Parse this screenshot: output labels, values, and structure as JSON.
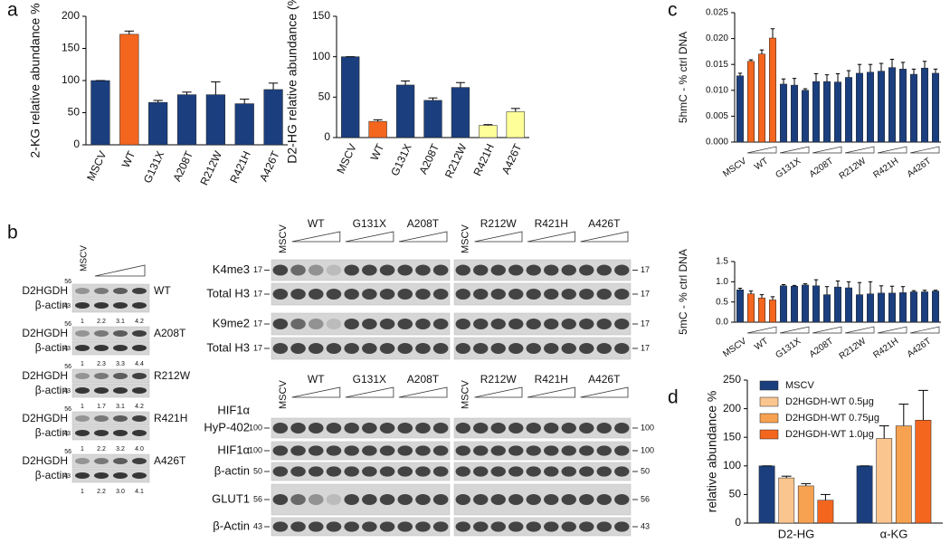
{
  "panel_labels": [
    "a",
    "b",
    "c",
    "d"
  ],
  "chart_data": [
    {
      "type": "bar",
      "ylabel": "2-KG relative abundance %",
      "categories": [
        "MSCV",
        "WT",
        "G131X",
        "A208T",
        "R212W",
        "R421H",
        "A426T"
      ],
      "values": [
        100,
        172,
        66,
        78,
        78,
        64,
        86
      ],
      "errors": [
        0,
        5,
        3,
        4,
        20,
        7,
        10
      ],
      "colors": [
        "#1b3f7e",
        "#f4661e",
        "#1b3f7e",
        "#1b3f7e",
        "#1b3f7e",
        "#1b3f7e",
        "#1b3f7e"
      ],
      "ylim": [
        0,
        200
      ],
      "yticks": [
        0,
        50,
        100,
        150,
        200
      ]
    },
    {
      "type": "bar",
      "ylabel": "D2-HG relative abundance (%)",
      "categories": [
        "MSCV",
        "WT",
        "G131X",
        "A208T",
        "R212W",
        "R421H",
        "A426T"
      ],
      "values": [
        100,
        20,
        65,
        46,
        62,
        15,
        32
      ],
      "errors": [
        0,
        2,
        5,
        3,
        6,
        1,
        4
      ],
      "colors": [
        "#1b3f7e",
        "#f4661e",
        "#1b3f7e",
        "#1b3f7e",
        "#1b3f7e",
        "#ffff99",
        "#ffff99"
      ],
      "ylim": [
        0,
        150
      ],
      "yticks": [
        0,
        50,
        100,
        150
      ]
    },
    {
      "type": "dose_bar",
      "ylabel": "5hmC - % ctrl DNA",
      "groups": [
        {
          "name": "MSCV",
          "color": "#1b3f7e",
          "values": [
            0.0128
          ],
          "errors": [
            0.0005
          ]
        },
        {
          "name": "WT",
          "color": "#f4661e",
          "values": [
            0.0156,
            0.017,
            0.0201
          ],
          "errors": [
            0.0003,
            0.0008,
            0.0018
          ]
        },
        {
          "name": "G131X",
          "color": "#1b3f7e",
          "values": [
            0.0112,
            0.011,
            0.01
          ],
          "errors": [
            0.001,
            0.0013,
            0.0003
          ]
        },
        {
          "name": "A208T",
          "color": "#1b3f7e",
          "values": [
            0.0117,
            0.0117,
            0.0116
          ],
          "errors": [
            0.0015,
            0.0013,
            0.0016
          ]
        },
        {
          "name": "R212W",
          "color": "#1b3f7e",
          "values": [
            0.0125,
            0.0133,
            0.0135
          ],
          "errors": [
            0.0013,
            0.0017,
            0.0015
          ]
        },
        {
          "name": "R421H",
          "color": "#1b3f7e",
          "values": [
            0.0137,
            0.0144,
            0.0141
          ],
          "errors": [
            0.0015,
            0.0016,
            0.0013
          ]
        },
        {
          "name": "A426T",
          "color": "#1b3f7e",
          "values": [
            0.0131,
            0.0143,
            0.0133
          ],
          "errors": [
            0.001,
            0.0013,
            0.0008
          ]
        }
      ],
      "ylim": [
        0,
        0.025
      ],
      "yticks": [
        {
          "value": 0,
          "label": "0.000"
        },
        0.005,
        {
          "value": 0.01,
          "label": "0.010"
        },
        0.015,
        {
          "value": 0.02,
          "label": "0.020"
        },
        0.025
      ]
    },
    {
      "type": "dose_bar",
      "ylabel": "5mC - % ctrl DNA",
      "groups": [
        {
          "name": "MSCV",
          "color": "#1b3f7e",
          "values": [
            0.8
          ],
          "errors": [
            0.04
          ]
        },
        {
          "name": "WT",
          "color": "#f4661e",
          "values": [
            0.7,
            0.6,
            0.55
          ],
          "errors": [
            0.07,
            0.08,
            0.08
          ]
        },
        {
          "name": "G131X",
          "color": "#1b3f7e",
          "values": [
            0.9,
            0.89,
            0.92
          ],
          "errors": [
            0.03,
            0.02,
            0.03
          ]
        },
        {
          "name": "A208T",
          "color": "#1b3f7e",
          "values": [
            0.9,
            0.68,
            0.87
          ],
          "errors": [
            0.15,
            0.2,
            0.15
          ]
        },
        {
          "name": "R212W",
          "color": "#1b3f7e",
          "values": [
            0.85,
            0.68,
            0.7
          ],
          "errors": [
            0.15,
            0.3,
            0.3
          ]
        },
        {
          "name": "R421H",
          "color": "#1b3f7e",
          "values": [
            0.72,
            0.72,
            0.73
          ],
          "errors": [
            0.18,
            0.17,
            0.15
          ]
        },
        {
          "name": "A426T",
          "color": "#1b3f7e",
          "values": [
            0.75,
            0.75,
            0.77
          ],
          "errors": [
            0.03,
            0.04,
            0.02
          ]
        }
      ],
      "ylim": [
        0,
        1.5
      ],
      "yticks": [
        {
          "value": 0,
          "label": "0.0"
        },
        0.5,
        {
          "value": 1,
          "label": "1.0"
        },
        1.5
      ]
    },
    {
      "type": "grouped_bar",
      "ylabel": "relative abundance %",
      "categories": [
        "D2-HG",
        "α-KG"
      ],
      "series": [
        {
          "name": "MSCV",
          "color": "#1b3f7e",
          "values": [
            100,
            100
          ],
          "errors": [
            0,
            0
          ]
        },
        {
          "name": "D2HGDH-WT 0.5μg",
          "color": "#fbc58f",
          "values": [
            79,
            148
          ],
          "errors": [
            3,
            22
          ]
        },
        {
          "name": "D2HGDH-WT 0.75μg",
          "color": "#f7a250",
          "values": [
            65,
            170
          ],
          "errors": [
            4,
            38
          ]
        },
        {
          "name": "D2HGDH-WT 1.0μg",
          "color": "#f4661e",
          "values": [
            40,
            180
          ],
          "errors": [
            10,
            52
          ]
        }
      ],
      "ylim": [
        0,
        250
      ],
      "yticks": [
        0,
        50,
        100,
        150,
        200,
        250
      ],
      "legend": "upper-left"
    }
  ],
  "blots": {
    "left": {
      "header": "MSCV",
      "blocks": [
        {
          "name": "WT",
          "rows": [
            "D2HGDH",
            "β-actin"
          ],
          "markers": [
            "56",
            "43"
          ],
          "quant": [
            "1",
            "2.2",
            "3.1",
            "4.2"
          ]
        },
        {
          "name": "A208T",
          "rows": [
            "D2HGDH",
            "β-actin"
          ],
          "markers": [
            "56",
            "43"
          ],
          "quant": [
            "1",
            "2.3",
            "3.3",
            "4.4"
          ]
        },
        {
          "name": "R212W",
          "rows": [
            "D2HGDH",
            "β-actin"
          ],
          "markers": [
            "56",
            "43"
          ],
          "quant": [
            "1",
            "1.7",
            "3.1",
            "4.2"
          ]
        },
        {
          "name": "R421H",
          "rows": [
            "D2HGDH",
            "β-actin"
          ],
          "markers": [
            "56",
            "43"
          ],
          "quant": [
            "1",
            "2.2",
            "3.2",
            "4.0"
          ]
        },
        {
          "name": "A426T",
          "rows": [
            "D2HGDH",
            "β-actin"
          ],
          "markers": [
            "56",
            "43"
          ],
          "quant": [
            "1",
            "2.2",
            "3.0",
            "4.1"
          ]
        }
      ]
    },
    "top": {
      "panels": [
        [
          "MSCV",
          "WT",
          "G131X",
          "A208T"
        ],
        [
          "MSCV",
          "R212W",
          "R421H",
          "A426T"
        ]
      ],
      "rows": [
        {
          "label": [
            "K4me3"
          ],
          "marker": "17"
        },
        {
          "label": [
            "Total H3"
          ],
          "marker": "17"
        },
        {
          "label": [
            "K9me2"
          ],
          "marker": "17"
        },
        {
          "label": [
            "Total H3"
          ],
          "marker": "17"
        }
      ]
    },
    "bottom": {
      "panels": [
        [
          "MSCV",
          "WT",
          "G131X",
          "A208T"
        ],
        [
          "MSCV",
          "R212W",
          "R421H",
          "A426T"
        ]
      ],
      "rows": [
        {
          "label": [
            "HIF1α",
            "HyP-402"
          ],
          "marker": "100"
        },
        {
          "label": [
            "HIF1α"
          ],
          "marker": "100"
        },
        {
          "label": [
            "β-actin"
          ],
          "marker": "50"
        },
        {
          "label": [
            "GLUT1"
          ],
          "marker": "56"
        },
        {
          "label": [
            "β-Actin"
          ],
          "marker": "43"
        }
      ]
    }
  }
}
